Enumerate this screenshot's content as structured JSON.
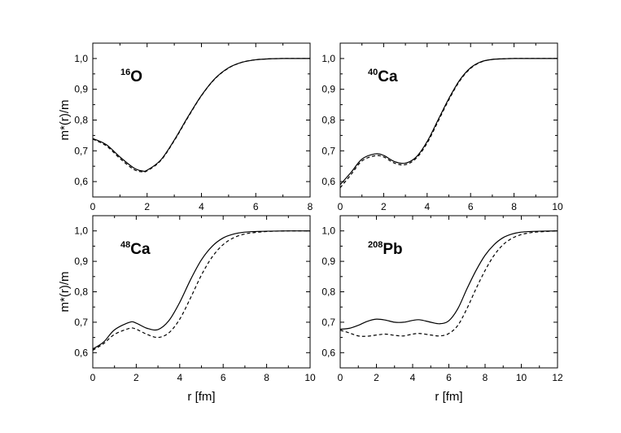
{
  "chart_data": [
    {
      "type": "line",
      "nucleus": {
        "mass": "16",
        "symbol": "O"
      },
      "ylabel": "m*(r)/m",
      "xlabel": "",
      "xlim": [
        0,
        8
      ],
      "ylim": [
        0.55,
        1.05
      ],
      "xticks": [
        0,
        2,
        4,
        6,
        8
      ],
      "xtick_labels": [
        "0",
        "2",
        "4",
        "6",
        "8"
      ],
      "yticks": [
        0.6,
        0.7,
        0.8,
        0.9,
        1.0
      ],
      "ytick_labels": [
        "0,6",
        "0,7",
        "0,8",
        "0,9",
        "1,0"
      ],
      "series": [
        {
          "style": "solid",
          "x": [
            0,
            0.5,
            1.0,
            1.5,
            1.8,
            2.0,
            2.5,
            3.0,
            3.5,
            4.0,
            4.5,
            5.0,
            5.5,
            6.0,
            6.5,
            7.0,
            7.5,
            8.0
          ],
          "y": [
            0.74,
            0.72,
            0.68,
            0.645,
            0.635,
            0.637,
            0.67,
            0.735,
            0.81,
            0.88,
            0.935,
            0.97,
            0.988,
            0.996,
            0.999,
            1.0,
            1.0,
            1.0
          ]
        },
        {
          "style": "dashed",
          "x": [
            0,
            0.5,
            1.0,
            1.5,
            1.8,
            2.0,
            2.5,
            3.0,
            3.5,
            4.0,
            4.5,
            5.0,
            5.5,
            6.0,
            6.5,
            7.0,
            7.5,
            8.0
          ],
          "y": [
            0.738,
            0.716,
            0.675,
            0.64,
            0.632,
            0.635,
            0.668,
            0.733,
            0.808,
            0.879,
            0.934,
            0.969,
            0.988,
            0.996,
            0.999,
            1.0,
            1.0,
            1.0
          ]
        }
      ]
    },
    {
      "type": "line",
      "nucleus": {
        "mass": "40",
        "symbol": "Ca"
      },
      "ylabel": "",
      "xlabel": "",
      "xlim": [
        0,
        10
      ],
      "ylim": [
        0.55,
        1.05
      ],
      "xticks": [
        0,
        2,
        4,
        6,
        8,
        10
      ],
      "xtick_labels": [
        "0",
        "2",
        "4",
        "6",
        "8",
        "10"
      ],
      "yticks": [
        0.6,
        0.7,
        0.8,
        0.9,
        1.0
      ],
      "ytick_labels": [
        "0,6",
        "0,7",
        "0,8",
        "0,9",
        "1,0"
      ],
      "series": [
        {
          "style": "solid",
          "x": [
            0,
            0.5,
            1.0,
            1.6,
            2.0,
            2.5,
            3.0,
            3.5,
            4.0,
            4.5,
            5.0,
            5.5,
            6.0,
            6.5,
            7.0,
            7.5,
            8.0,
            9.0,
            10.0
          ],
          "y": [
            0.59,
            0.63,
            0.673,
            0.69,
            0.685,
            0.665,
            0.66,
            0.68,
            0.73,
            0.8,
            0.87,
            0.93,
            0.97,
            0.99,
            0.997,
            0.999,
            1.0,
            1.0,
            1.0
          ]
        },
        {
          "style": "dashed",
          "x": [
            0,
            0.5,
            1.0,
            1.6,
            2.0,
            2.5,
            3.0,
            3.5,
            4.0,
            4.5,
            5.0,
            5.5,
            6.0,
            6.5,
            7.0,
            7.5,
            8.0,
            9.0,
            10.0
          ],
          "y": [
            0.58,
            0.623,
            0.667,
            0.684,
            0.68,
            0.66,
            0.655,
            0.676,
            0.725,
            0.795,
            0.866,
            0.927,
            0.968,
            0.989,
            0.997,
            0.999,
            1.0,
            1.0,
            1.0
          ]
        }
      ]
    },
    {
      "type": "line",
      "nucleus": {
        "mass": "48",
        "symbol": "Ca"
      },
      "ylabel": "m*(r)/m",
      "xlabel": "r [fm]",
      "xlim": [
        0,
        10
      ],
      "ylim": [
        0.55,
        1.05
      ],
      "xticks": [
        0,
        2,
        4,
        6,
        8,
        10
      ],
      "xtick_labels": [
        "0",
        "2",
        "4",
        "6",
        "8",
        "10"
      ],
      "yticks": [
        0.6,
        0.7,
        0.8,
        0.9,
        1.0
      ],
      "ytick_labels": [
        "0,6",
        "0,7",
        "0,8",
        "0,9",
        "1,0"
      ],
      "series": [
        {
          "style": "solid",
          "x": [
            0,
            0.5,
            1.0,
            1.7,
            2.0,
            2.5,
            3.0,
            3.5,
            4.0,
            4.5,
            5.0,
            5.5,
            6.0,
            6.5,
            7.0,
            7.5,
            8.0,
            9.0,
            10.0
          ],
          "y": [
            0.612,
            0.635,
            0.675,
            0.7,
            0.697,
            0.68,
            0.676,
            0.705,
            0.765,
            0.84,
            0.905,
            0.95,
            0.977,
            0.99,
            0.996,
            0.998,
            0.999,
            1.0,
            1.0
          ]
        },
        {
          "style": "dashed",
          "x": [
            0,
            0.5,
            1.0,
            1.7,
            2.0,
            2.5,
            3.0,
            3.5,
            4.0,
            4.5,
            5.0,
            5.5,
            6.0,
            6.5,
            7.0,
            7.5,
            8.0,
            9.0,
            10.0
          ],
          "y": [
            0.608,
            0.63,
            0.66,
            0.68,
            0.677,
            0.66,
            0.65,
            0.665,
            0.71,
            0.78,
            0.855,
            0.915,
            0.955,
            0.978,
            0.99,
            0.995,
            0.998,
            1.0,
            1.0
          ]
        }
      ]
    },
    {
      "type": "line",
      "nucleus": {
        "mass": "208",
        "symbol": "Pb"
      },
      "ylabel": "",
      "xlabel": "r [fm]",
      "xlim": [
        0,
        12
      ],
      "ylim": [
        0.55,
        1.05
      ],
      "xticks": [
        0,
        2,
        4,
        6,
        8,
        10,
        12
      ],
      "xtick_labels": [
        "0",
        "2",
        "4",
        "6",
        "8",
        "10",
        "12"
      ],
      "yticks": [
        0.6,
        0.7,
        0.8,
        0.9,
        1.0
      ],
      "ytick_labels": [
        "0,6",
        "0,7",
        "0,8",
        "0,9",
        "1,0"
      ],
      "series": [
        {
          "style": "solid",
          "x": [
            0,
            0.5,
            1.0,
            1.5,
            2.0,
            2.5,
            3.0,
            3.5,
            4.0,
            4.4,
            5.0,
            5.5,
            6.0,
            6.5,
            7.0,
            7.5,
            8.0,
            8.5,
            9.0,
            9.5,
            10.0,
            10.5,
            11.0,
            12.0
          ],
          "y": [
            0.677,
            0.68,
            0.69,
            0.703,
            0.71,
            0.707,
            0.7,
            0.7,
            0.706,
            0.708,
            0.7,
            0.695,
            0.705,
            0.745,
            0.81,
            0.87,
            0.92,
            0.955,
            0.978,
            0.99,
            0.996,
            0.998,
            0.999,
            1.0
          ]
        },
        {
          "style": "dashed",
          "x": [
            0,
            0.5,
            1.0,
            1.5,
            2.0,
            2.5,
            3.0,
            3.5,
            4.0,
            4.4,
            5.0,
            5.5,
            6.0,
            6.5,
            7.0,
            7.5,
            8.0,
            8.5,
            9.0,
            9.5,
            10.0,
            10.5,
            11.0,
            12.0
          ],
          "y": [
            0.674,
            0.665,
            0.655,
            0.654,
            0.658,
            0.661,
            0.657,
            0.655,
            0.661,
            0.663,
            0.658,
            0.655,
            0.663,
            0.69,
            0.745,
            0.81,
            0.87,
            0.92,
            0.955,
            0.976,
            0.988,
            0.994,
            0.997,
            1.0
          ]
        }
      ]
    }
  ]
}
